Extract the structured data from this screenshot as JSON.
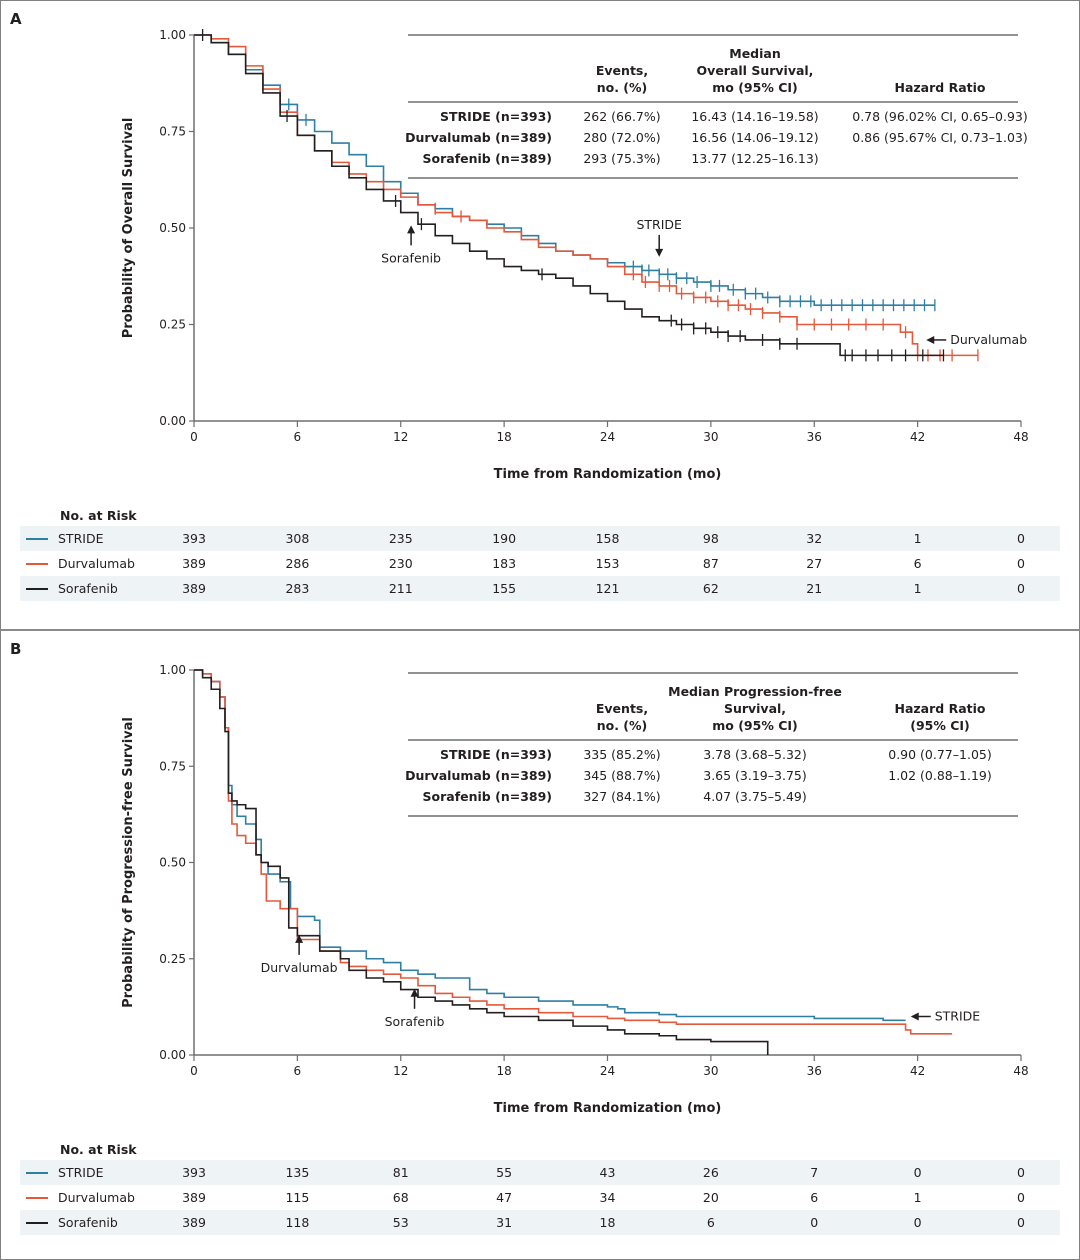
{
  "colors": {
    "stride": "#2f7fa3",
    "durvalumab": "#e2593b",
    "sorafenib": "#231f20",
    "axis": "#6d6e71",
    "risk_shade": "#eef3f6"
  },
  "chart_data": [
    {
      "panel": "A",
      "type": "line",
      "subtype": "kaplan-meier",
      "title": "",
      "xlabel": "Time from Randomization (mo)",
      "ylabel": "Probability of  Overall Survival",
      "xlim": [
        0,
        48
      ],
      "ylim": [
        0,
        1
      ],
      "xticks": [
        "0",
        "6",
        "12",
        "18",
        "24",
        "30",
        "36",
        "42",
        "48"
      ],
      "yticks": [
        "0.00",
        "0.25",
        "0.50",
        "0.75",
        "1.00"
      ],
      "grid": false,
      "series": [
        {
          "name": "STRIDE",
          "key": "stride",
          "x": [
            0,
            1,
            2,
            3,
            4,
            5,
            6,
            7,
            8,
            9,
            10,
            11,
            12,
            13,
            14,
            15,
            16,
            17,
            18,
            19,
            20,
            21,
            22,
            23,
            24,
            25,
            26,
            27,
            28,
            29,
            30,
            31,
            32,
            33,
            34,
            35,
            36,
            37,
            38,
            39,
            40,
            41,
            42,
            43
          ],
          "y": [
            1.0,
            0.98,
            0.95,
            0.91,
            0.87,
            0.82,
            0.78,
            0.75,
            0.72,
            0.69,
            0.66,
            0.62,
            0.59,
            0.56,
            0.55,
            0.53,
            0.52,
            0.51,
            0.5,
            0.48,
            0.46,
            0.44,
            0.43,
            0.42,
            0.41,
            0.4,
            0.39,
            0.38,
            0.37,
            0.36,
            0.35,
            0.34,
            0.33,
            0.32,
            0.31,
            0.31,
            0.3,
            0.3,
            0.3,
            0.3,
            0.3,
            0.3,
            0.3,
            0.3
          ],
          "censor_x": [
            5.5,
            6.5,
            14,
            25.5,
            26,
            26.4,
            27,
            27.5,
            28,
            28.6,
            29.2,
            30,
            30.5,
            31.3,
            32,
            32.6,
            33.3,
            34,
            34.6,
            35.2,
            35.8,
            36.4,
            37,
            37.6,
            38.2,
            38.8,
            39.4,
            40,
            40.6,
            41.2,
            41.8,
            42.4,
            43
          ]
        },
        {
          "name": "Durvalumab",
          "key": "durvalumab",
          "x": [
            0,
            1,
            2,
            3,
            4,
            5,
            6,
            7,
            8,
            9,
            10,
            11,
            12,
            13,
            14,
            15,
            16,
            17,
            18,
            19,
            20,
            21,
            22,
            23,
            24,
            25,
            26,
            27,
            28,
            29,
            30,
            31,
            32,
            33,
            34,
            35,
            36,
            37,
            38,
            39,
            40,
            41,
            41.7,
            42,
            43,
            44,
            45.5
          ],
          "y": [
            1.0,
            0.99,
            0.97,
            0.92,
            0.86,
            0.8,
            0.74,
            0.7,
            0.67,
            0.64,
            0.62,
            0.6,
            0.58,
            0.56,
            0.54,
            0.53,
            0.52,
            0.5,
            0.49,
            0.47,
            0.45,
            0.44,
            0.43,
            0.42,
            0.4,
            0.38,
            0.36,
            0.35,
            0.33,
            0.32,
            0.31,
            0.3,
            0.29,
            0.28,
            0.27,
            0.25,
            0.25,
            0.25,
            0.25,
            0.25,
            0.25,
            0.23,
            0.2,
            0.17,
            0.17,
            0.17,
            0.17
          ],
          "censor_x": [
            15.5,
            25.5,
            26.2,
            27,
            27.6,
            28.3,
            29,
            29.7,
            30.4,
            31,
            31.6,
            32.3,
            33,
            34,
            35,
            36,
            37,
            38,
            39,
            40,
            41.3,
            42,
            42.6,
            43.3,
            44,
            45.5
          ]
        },
        {
          "name": "Sorafenib",
          "key": "sorafenib",
          "x": [
            0,
            1,
            2,
            3,
            4,
            5,
            6,
            7,
            8,
            9,
            10,
            11,
            12,
            13,
            14,
            15,
            16,
            17,
            18,
            19,
            20,
            21,
            22,
            23,
            24,
            25,
            26,
            27,
            28,
            29,
            30,
            31,
            32,
            33,
            34,
            35,
            36,
            37,
            37.5,
            38,
            39,
            40,
            41,
            42,
            43.5
          ],
          "y": [
            1.0,
            0.98,
            0.95,
            0.9,
            0.85,
            0.79,
            0.74,
            0.7,
            0.66,
            0.63,
            0.6,
            0.57,
            0.54,
            0.51,
            0.48,
            0.46,
            0.44,
            0.42,
            0.4,
            0.39,
            0.38,
            0.37,
            0.35,
            0.33,
            0.31,
            0.29,
            0.27,
            0.26,
            0.25,
            0.24,
            0.23,
            0.22,
            0.21,
            0.21,
            0.2,
            0.2,
            0.2,
            0.2,
            0.17,
            0.17,
            0.17,
            0.17,
            0.17,
            0.17,
            0.17
          ],
          "censor_x": [
            0.5,
            5.4,
            11.7,
            13.2,
            20.2,
            27.7,
            28.3,
            29,
            29.7,
            30.4,
            31,
            31.7,
            33,
            34,
            35,
            37.8,
            38.2,
            39,
            39.7,
            40.5,
            41.3,
            42.3,
            43.5
          ]
        }
      ],
      "annotations": [
        {
          "text": "Sorafenib",
          "x": 12.6,
          "y": 0.455,
          "arrow": "up"
        },
        {
          "text": "STRIDE",
          "x": 27,
          "y": 0.42,
          "arrow": "down"
        },
        {
          "text": "Durvalumab",
          "x": 42.5,
          "y": 0.21,
          "arrow": "left"
        }
      ],
      "table": {
        "headers": [
          "",
          "Events,\nno. (%)",
          "Median\nOverall Survival,\nmo (95% CI)",
          "Hazard Ratio"
        ],
        "rows": [
          [
            "STRIDE (n=393)",
            "262 (66.7%)",
            "16.43 (14.16–19.58)",
            "0.78 (96.02% CI, 0.65–0.93)"
          ],
          [
            "Durvalumab (n=389)",
            "280 (72.0%)",
            "16.56 (14.06–19.12)",
            "0.86 (95.67% CI, 0.73–1.03)"
          ],
          [
            "Sorafenib (n=389)",
            "293 (75.3%)",
            "13.77 (12.25–16.13)",
            ""
          ]
        ]
      },
      "at_risk": {
        "title": "No. at Risk",
        "times": [
          0,
          6,
          12,
          18,
          24,
          30,
          36,
          42,
          48
        ],
        "rows": [
          {
            "name": "STRIDE",
            "key": "stride",
            "values": [
              393,
              308,
              235,
              190,
              158,
              98,
              32,
              1,
              0
            ]
          },
          {
            "name": "Durvalumab",
            "key": "durvalumab",
            "values": [
              389,
              286,
              230,
              183,
              153,
              87,
              27,
              6,
              0
            ]
          },
          {
            "name": "Sorafenib",
            "key": "sorafenib",
            "values": [
              389,
              283,
              211,
              155,
              121,
              62,
              21,
              1,
              0
            ]
          }
        ]
      }
    },
    {
      "panel": "B",
      "type": "line",
      "subtype": "kaplan-meier",
      "title": "",
      "xlabel": "Time from Randomization (mo)",
      "ylabel": "Probability of  Progression-free Survival",
      "xlim": [
        0,
        48
      ],
      "ylim": [
        0,
        1
      ],
      "xticks": [
        "0",
        "6",
        "12",
        "18",
        "24",
        "30",
        "36",
        "42",
        "48"
      ],
      "yticks": [
        "0.00",
        "0.25",
        "0.50",
        "0.75",
        "1.00"
      ],
      "grid": false,
      "series": [
        {
          "name": "STRIDE",
          "key": "stride",
          "x": [
            0,
            0.5,
            1,
            1.5,
            1.8,
            2.0,
            2.2,
            2.5,
            3.0,
            3.6,
            3.9,
            4.3,
            5.0,
            5.6,
            6.0,
            7.0,
            7.3,
            8.5,
            9.0,
            10,
            11,
            12,
            13,
            14,
            16,
            17,
            18,
            20,
            22,
            24,
            24.6,
            25,
            27,
            28,
            30,
            31,
            33,
            36,
            38,
            40,
            41.3
          ],
          "y": [
            1.0,
            0.99,
            0.97,
            0.93,
            0.85,
            0.7,
            0.65,
            0.62,
            0.6,
            0.56,
            0.5,
            0.47,
            0.45,
            0.38,
            0.36,
            0.35,
            0.28,
            0.27,
            0.27,
            0.25,
            0.24,
            0.22,
            0.21,
            0.2,
            0.17,
            0.16,
            0.15,
            0.14,
            0.13,
            0.125,
            0.12,
            0.11,
            0.105,
            0.1,
            0.1,
            0.1,
            0.1,
            0.095,
            0.095,
            0.09,
            0.09
          ]
        },
        {
          "name": "Durvalumab",
          "key": "durvalumab",
          "x": [
            0,
            0.5,
            1,
            1.5,
            1.8,
            2.0,
            2.2,
            2.5,
            3.0,
            3.6,
            3.9,
            4.2,
            5.0,
            6.0,
            7.3,
            8.5,
            9,
            10,
            11,
            12,
            13,
            14,
            15,
            16,
            17,
            18,
            20,
            22,
            24,
            25,
            27,
            28,
            30,
            33,
            36,
            39,
            41.3,
            41.6,
            44
          ],
          "y": [
            1.0,
            0.99,
            0.97,
            0.93,
            0.85,
            0.66,
            0.6,
            0.57,
            0.55,
            0.52,
            0.47,
            0.4,
            0.38,
            0.3,
            0.27,
            0.24,
            0.23,
            0.22,
            0.21,
            0.2,
            0.18,
            0.16,
            0.15,
            0.14,
            0.13,
            0.12,
            0.11,
            0.1,
            0.095,
            0.09,
            0.085,
            0.08,
            0.08,
            0.08,
            0.08,
            0.08,
            0.065,
            0.055,
            0.055
          ]
        },
        {
          "name": "Sorafenib",
          "key": "sorafenib",
          "x": [
            0,
            0.5,
            1,
            1.5,
            1.8,
            2.0,
            2.2,
            2.5,
            3.0,
            3.6,
            3.9,
            4.3,
            5.0,
            5.5,
            6.0,
            7.3,
            8.5,
            9,
            10,
            11,
            12,
            13,
            14,
            15,
            16,
            17,
            18,
            20,
            22,
            24,
            25,
            27,
            28,
            30,
            33,
            33.3
          ],
          "y": [
            1.0,
            0.98,
            0.95,
            0.9,
            0.84,
            0.68,
            0.66,
            0.65,
            0.64,
            0.52,
            0.5,
            0.49,
            0.46,
            0.33,
            0.31,
            0.27,
            0.25,
            0.22,
            0.2,
            0.19,
            0.17,
            0.15,
            0.14,
            0.13,
            0.12,
            0.11,
            0.1,
            0.09,
            0.075,
            0.065,
            0.055,
            0.05,
            0.04,
            0.035,
            0.035,
            0.0
          ]
        }
      ],
      "annotations": [
        {
          "text": "Durvalumab",
          "x": 6.1,
          "y": 0.26,
          "arrow": "up"
        },
        {
          "text": "Sorafenib",
          "x": 12.8,
          "y": 0.12,
          "arrow": "up"
        },
        {
          "text": "STRIDE",
          "x": 41.6,
          "y": 0.1,
          "arrow": "left"
        }
      ],
      "table": {
        "headers": [
          "",
          "Events,\nno. (%)",
          "Median Progression-free\nSurvival,\nmo (95% CI)",
          "Hazard Ratio\n(95% CI)"
        ],
        "rows": [
          [
            "STRIDE (n=393)",
            "335 (85.2%)",
            "3.78 (3.68–5.32)",
            "0.90 (0.77–1.05)"
          ],
          [
            "Durvalumab (n=389)",
            "345 (88.7%)",
            "3.65 (3.19–3.75)",
            "1.02 (0.88–1.19)"
          ],
          [
            "Sorafenib (n=389)",
            "327 (84.1%)",
            "4.07 (3.75–5.49)",
            ""
          ]
        ]
      },
      "at_risk": {
        "title": "No. at Risk",
        "times": [
          0,
          6,
          12,
          18,
          24,
          30,
          36,
          42,
          48
        ],
        "rows": [
          {
            "name": "STRIDE",
            "key": "stride",
            "values": [
              393,
              135,
              81,
              55,
              43,
              26,
              7,
              0,
              0
            ]
          },
          {
            "name": "Durvalumab",
            "key": "durvalumab",
            "values": [
              389,
              115,
              68,
              47,
              34,
              20,
              6,
              1,
              0
            ]
          },
          {
            "name": "Sorafenib",
            "key": "sorafenib",
            "values": [
              389,
              118,
              53,
              31,
              18,
              6,
              0,
              0,
              0
            ]
          }
        ]
      }
    }
  ]
}
